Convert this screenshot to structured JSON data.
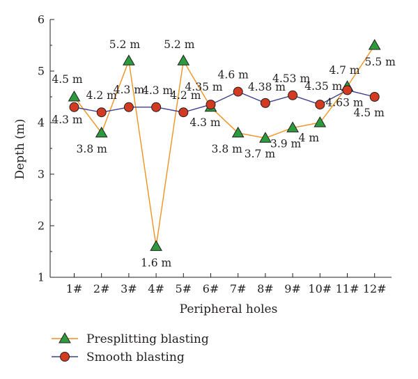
{
  "chart_data": {
    "type": "line",
    "xlabel": "Peripheral holes",
    "ylabel": "Depth (m)",
    "ylim": [
      1,
      6
    ],
    "yticks": [
      "1",
      "2",
      "3",
      "4",
      "5",
      "6"
    ],
    "categories": [
      "1#",
      "2#",
      "3#",
      "4#",
      "5#",
      "6#",
      "7#",
      "8#",
      "9#",
      "10#",
      "11#",
      "12#"
    ],
    "grid": false,
    "legend_position": "bottom-left",
    "series": [
      {
        "name": "Presplitting blasting",
        "marker": "triangle",
        "line_color": "#f0921e",
        "marker_fill": "#2e9a3e",
        "values": [
          4.5,
          3.8,
          5.2,
          1.6,
          5.2,
          4.3,
          3.8,
          3.7,
          3.9,
          4.0,
          4.7,
          5.5
        ],
        "labels": [
          "4.5 m",
          "3.8 m",
          "5.2 m",
          "1.6 m",
          "5.2 m",
          "4.3 m",
          "3.8 m",
          "3.7 m",
          "3.9 m",
          "4 m",
          "4.7 m",
          "5.5 m"
        ]
      },
      {
        "name": "Smooth blasting",
        "marker": "circle",
        "line_color": "#3f3f8f",
        "marker_fill": "#d23a22",
        "values": [
          4.3,
          4.2,
          4.3,
          4.3,
          4.2,
          4.35,
          4.6,
          4.38,
          4.53,
          4.35,
          4.63,
          4.5
        ],
        "labels": [
          "4.3 m",
          "4.2 m",
          "4.3 m",
          "4.3 m",
          "4.2 m",
          "4.35 m",
          "4.6 m",
          "4.38 m",
          "4.53 m",
          "4.35 m",
          "4.63 m",
          "4.5 m"
        ]
      }
    ]
  }
}
